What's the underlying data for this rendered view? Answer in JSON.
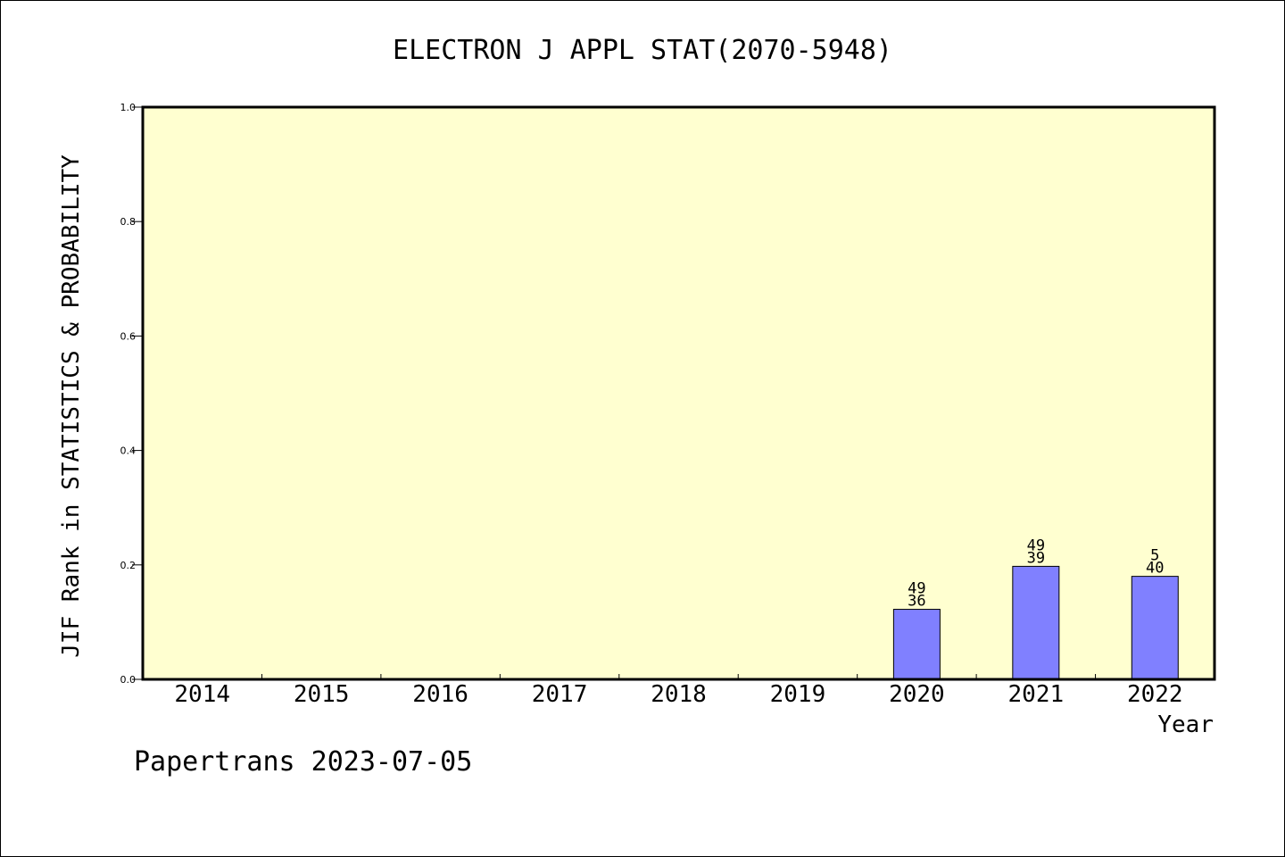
{
  "chart_data": {
    "type": "bar",
    "title": "ELECTRON J APPL STAT(2070-5948)",
    "xlabel": "Year",
    "ylabel": "JIF Rank in STATISTICS & PROBABILITY",
    "footer": "Papertrans 2023-07-05",
    "categories": [
      "2014",
      "2015",
      "2016",
      "2017",
      "2018",
      "2019",
      "2020",
      "2021",
      "2022"
    ],
    "values": [
      null,
      null,
      null,
      null,
      null,
      null,
      0.1224,
      0.1975,
      0.18
    ],
    "bar_labels": [
      null,
      null,
      null,
      null,
      null,
      null,
      {
        "top": "49",
        "bottom": "36"
      },
      {
        "top": "49",
        "bottom": "39"
      },
      {
        "top": "5",
        "bottom": "40"
      }
    ],
    "ylim": [
      0,
      1.0
    ],
    "yticks": [
      "0.0",
      "0.2",
      "0.4",
      "0.6",
      "0.8",
      "1.0"
    ],
    "grid": false,
    "colors": {
      "plot_background": "#ffffd0",
      "bar_fill": "#8080ff",
      "bar_stroke": "#000000"
    }
  }
}
